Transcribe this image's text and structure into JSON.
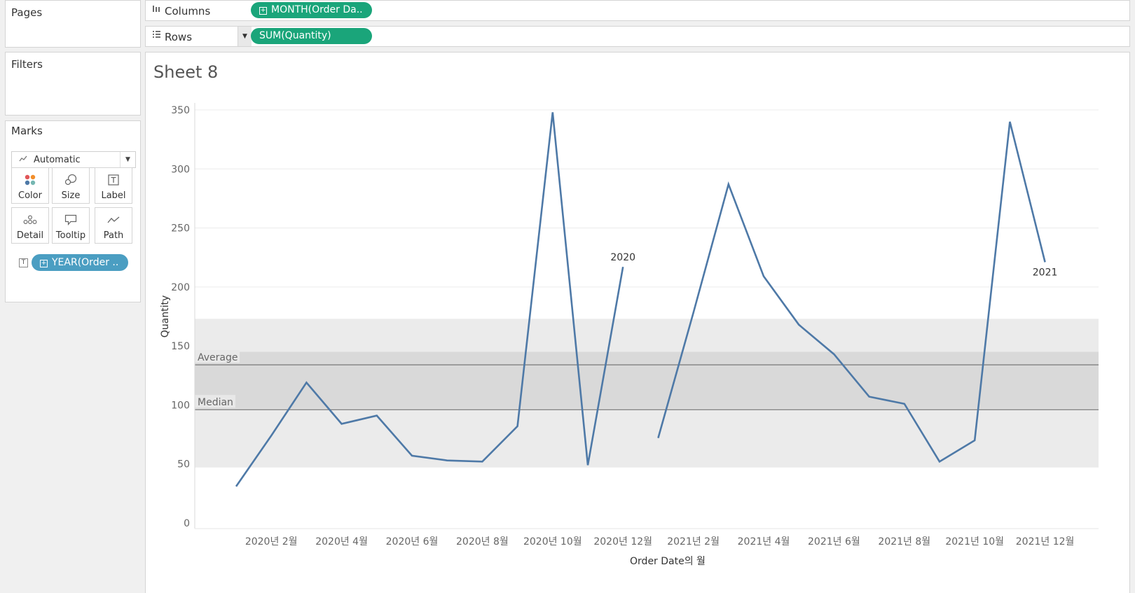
{
  "panels": {
    "pages_title": "Pages",
    "filters_title": "Filters",
    "marks_title": "Marks"
  },
  "marks": {
    "type_label": "Automatic",
    "type_icon": "line-chart-icon",
    "buttons": [
      {
        "label": "Color",
        "icon": "color-dots-icon"
      },
      {
        "label": "Size",
        "icon": "size-circles-icon"
      },
      {
        "label": "Label",
        "icon": "text-label-icon"
      },
      {
        "label": "Detail",
        "icon": "detail-dots-icon"
      },
      {
        "label": "Tooltip",
        "icon": "tooltip-bubble-icon"
      },
      {
        "label": "Path",
        "icon": "path-line-icon"
      }
    ],
    "label_field_pill": "YEAR(Order .."
  },
  "shelves": {
    "columns_label": "Columns",
    "columns_pill": "MONTH(Order Da..",
    "rows_label": "Rows",
    "rows_pill": "SUM(Quantity)"
  },
  "sheet": {
    "title": "Sheet 8"
  },
  "colors": {
    "line": "#4e79a7",
    "pill_green": "#1aa57a",
    "pill_blue": "#4b9ec2",
    "band_outer": "#ebebeb",
    "band_inner": "#d9d9d9",
    "ref_line": "#888888"
  },
  "chart_data": {
    "type": "line",
    "xlabel": "Order Date의 월",
    "ylabel": "Quantity",
    "ylim": [
      0,
      350
    ],
    "yticks": [
      0,
      50,
      100,
      150,
      200,
      250,
      300,
      350
    ],
    "grid": true,
    "x_tick_labels": [
      "2020년 2월",
      "2020년 4월",
      "2020년 6월",
      "2020년 8월",
      "2020년 10월",
      "2020년 12월",
      "2021년 2월",
      "2021년 4월",
      "2021년 6월",
      "2021년 8월",
      "2021년 10월",
      "2021년 12월"
    ],
    "series": [
      {
        "name": "2020",
        "x": [
          "2020-01",
          "2020-02",
          "2020-03",
          "2020-04",
          "2020-05",
          "2020-06",
          "2020-07",
          "2020-08",
          "2020-09",
          "2020-10",
          "2020-11",
          "2020-12"
        ],
        "values": [
          31,
          74,
          119,
          84,
          91,
          57,
          53,
          52,
          82,
          348,
          49,
          217
        ]
      },
      {
        "name": "2021",
        "x": [
          "2021-01",
          "2021-02",
          "2021-03",
          "2021-04",
          "2021-05",
          "2021-06",
          "2021-07",
          "2021-08",
          "2021-09",
          "2021-10",
          "2021-11",
          "2021-12"
        ],
        "values": [
          72,
          178,
          287,
          209,
          168,
          143,
          107,
          101,
          52,
          70,
          340,
          221
        ]
      }
    ],
    "reference_lines": [
      {
        "label": "Average",
        "value": 134
      },
      {
        "label": "Median",
        "value": 96
      }
    ],
    "reference_bands": [
      {
        "from": 47,
        "to": 173
      },
      {
        "from": 97,
        "to": 145
      }
    ]
  }
}
